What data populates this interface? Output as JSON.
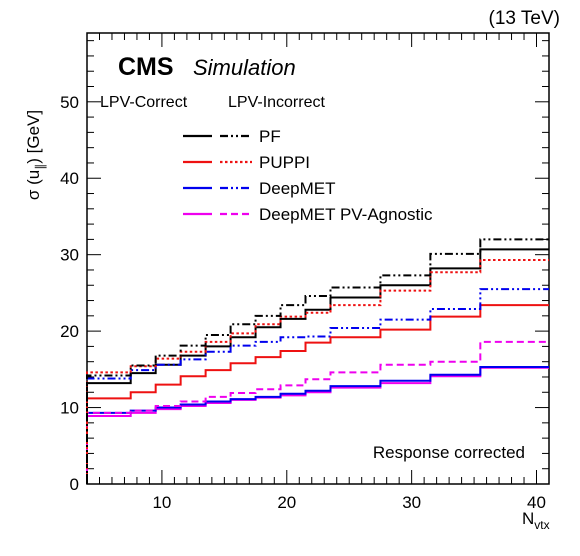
{
  "chart_data": {
    "type": "line",
    "step": true,
    "energy_label": "(13 TeV)",
    "experiment": "CMS",
    "experiment_sub": "Simulation",
    "ylabel_parts": [
      "σ (u",
      "∥",
      ") [GeV]"
    ],
    "xlabel_parts": [
      "N",
      "vtx"
    ],
    "annotation": "Response corrected",
    "legend_headers": [
      "LPV-Correct",
      "LPV-Incorrect"
    ],
    "legend_placement": "top-left",
    "xlim": [
      4,
      41
    ],
    "ylim": [
      0,
      59
    ],
    "xticks": [
      10,
      20,
      30,
      40
    ],
    "yticks": [
      0,
      10,
      20,
      30,
      40,
      50
    ],
    "edges": [
      4,
      7.5,
      9.5,
      11.5,
      13.5,
      15.5,
      17.5,
      19.5,
      21.5,
      23.5,
      27.5,
      31.5,
      35.5,
      41
    ],
    "series": [
      {
        "name": "PF",
        "condition": "LPV-Correct",
        "color": "#000000",
        "dash": "solid",
        "values": [
          13.2,
          14.5,
          15.6,
          16.8,
          18.0,
          19.2,
          20.5,
          21.6,
          22.8,
          24.4,
          26.0,
          28.2,
          30.7
        ]
      },
      {
        "name": "PF",
        "condition": "LPV-Incorrect",
        "color": "#000000",
        "dash": "dashdotdot",
        "values": [
          14.2,
          15.5,
          16.8,
          18.1,
          19.5,
          20.9,
          22.0,
          23.4,
          24.6,
          25.7,
          27.3,
          30.1,
          32.0
        ]
      },
      {
        "name": "PUPPI",
        "condition": "LPV-Correct",
        "color": "#ee1111",
        "dash": "solid",
        "values": [
          11.2,
          12.0,
          13.0,
          14.1,
          14.9,
          15.8,
          16.6,
          17.4,
          18.5,
          19.2,
          20.2,
          21.9,
          23.4
        ]
      },
      {
        "name": "PUPPI",
        "condition": "LPV-Incorrect",
        "color": "#ee1111",
        "dash": "dotted",
        "values": [
          14.6,
          15.4,
          16.4,
          17.3,
          18.6,
          19.7,
          20.9,
          21.9,
          22.4,
          23.4,
          25.3,
          27.7,
          29.3
        ]
      },
      {
        "name": "DeepMET",
        "condition": "LPV-Correct",
        "color": "#0000ee",
        "dash": "solid",
        "values": [
          9.3,
          9.6,
          10.0,
          10.4,
          10.8,
          11.1,
          11.4,
          11.8,
          12.2,
          12.8,
          13.5,
          14.3,
          15.3
        ]
      },
      {
        "name": "DeepMET",
        "condition": "LPV-Incorrect",
        "color": "#0000ee",
        "dash": "dashdotdot",
        "values": [
          13.8,
          14.9,
          15.6,
          16.3,
          17.3,
          18.1,
          18.6,
          19.2,
          19.3,
          20.4,
          21.5,
          22.9,
          25.5
        ]
      },
      {
        "name": "DeepMET PV-Agnostic",
        "condition": "LPV-Correct",
        "color": "#ee00ee",
        "dash": "solid",
        "values": [
          8.9,
          9.3,
          9.8,
          10.2,
          10.6,
          11.0,
          11.3,
          11.6,
          12.0,
          12.6,
          13.2,
          14.1,
          15.2
        ]
      },
      {
        "name": "DeepMET PV-Agnostic",
        "condition": "LPV-Incorrect",
        "color": "#ee00ee",
        "dash": "dashed",
        "values": [
          9.3,
          9.6,
          10.2,
          10.8,
          11.4,
          11.9,
          12.4,
          12.9,
          13.7,
          14.6,
          15.6,
          16.0,
          18.6
        ]
      }
    ],
    "legend_entries": [
      {
        "label": "PF",
        "color": "#000000",
        "dash_right": "dashdotdot"
      },
      {
        "label": "PUPPI",
        "color": "#ee1111",
        "dash_right": "dotted"
      },
      {
        "label": "DeepMET",
        "color": "#0000ee",
        "dash_right": "dashdotdot"
      },
      {
        "label": "DeepMET PV-Agnostic",
        "color": "#ee00ee",
        "dash_right": "dashed"
      }
    ]
  }
}
